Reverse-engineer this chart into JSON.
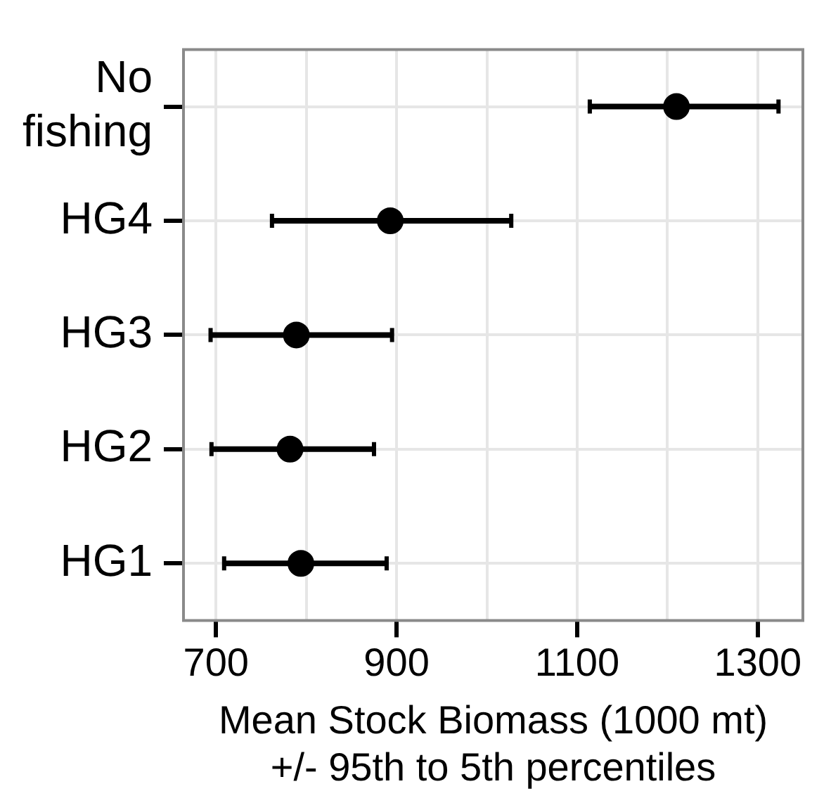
{
  "chart_data": {
    "type": "scatter",
    "orientation": "horizontal",
    "categories": [
      "No fishing",
      "HG4",
      "HG3",
      "HG2",
      "HG1"
    ],
    "values": [
      1210,
      893,
      789,
      782,
      794
    ],
    "errors": [
      [
        1114,
        1323
      ],
      [
        762,
        1027
      ],
      [
        694,
        895
      ],
      [
        695,
        875
      ],
      [
        709,
        889
      ]
    ],
    "color": "#000000",
    "marker": "circle",
    "xlabel": "Mean Stock Biomass (1000 mt)\n+/- 95th to 5th percentiles",
    "xlim": [
      664,
      1350
    ],
    "xticks": [
      700,
      {
        "value": 800,
        "label": null
      },
      900,
      {
        "value": 1000,
        "label": null
      },
      1100,
      {
        "value": 1200,
        "label": null
      },
      1300
    ],
    "grid": true
  }
}
